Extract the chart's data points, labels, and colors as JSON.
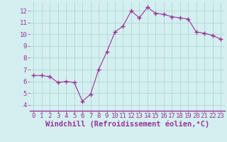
{
  "hours": [
    0,
    1,
    2,
    3,
    4,
    5,
    6,
    7,
    8,
    9,
    10,
    11,
    12,
    13,
    14,
    15,
    16,
    17,
    18,
    19,
    20,
    21,
    22,
    23
  ],
  "values": [
    6.5,
    6.5,
    6.4,
    5.9,
    6.0,
    5.9,
    4.3,
    4.9,
    7.0,
    8.5,
    10.2,
    10.7,
    12.0,
    11.4,
    12.3,
    11.8,
    11.7,
    11.5,
    11.4,
    11.3,
    10.2,
    10.1,
    9.9,
    9.6
  ],
  "line_color": "#993399",
  "marker": "+",
  "marker_size": 4,
  "bg_color": "#d4efef",
  "grid_color": "#b0d0d0",
  "xlabel": "Windchill (Refroidissement éolien,°C)",
  "xlabel_color": "#993399",
  "xlabel_fontsize": 7.5,
  "tick_color": "#993399",
  "tick_fontsize": 6.5,
  "ylim": [
    3.5,
    12.8
  ],
  "xlim": [
    -0.5,
    23.5
  ],
  "yticks": [
    4,
    5,
    6,
    7,
    8,
    9,
    10,
    11,
    12
  ],
  "xtick_labels": [
    "0",
    "1",
    "2",
    "3",
    "4",
    "5",
    "6",
    "7",
    "8",
    "9",
    "10",
    "11",
    "12",
    "13",
    "14",
    "15",
    "16",
    "17",
    "18",
    "19",
    "20",
    "21",
    "22",
    "23"
  ]
}
